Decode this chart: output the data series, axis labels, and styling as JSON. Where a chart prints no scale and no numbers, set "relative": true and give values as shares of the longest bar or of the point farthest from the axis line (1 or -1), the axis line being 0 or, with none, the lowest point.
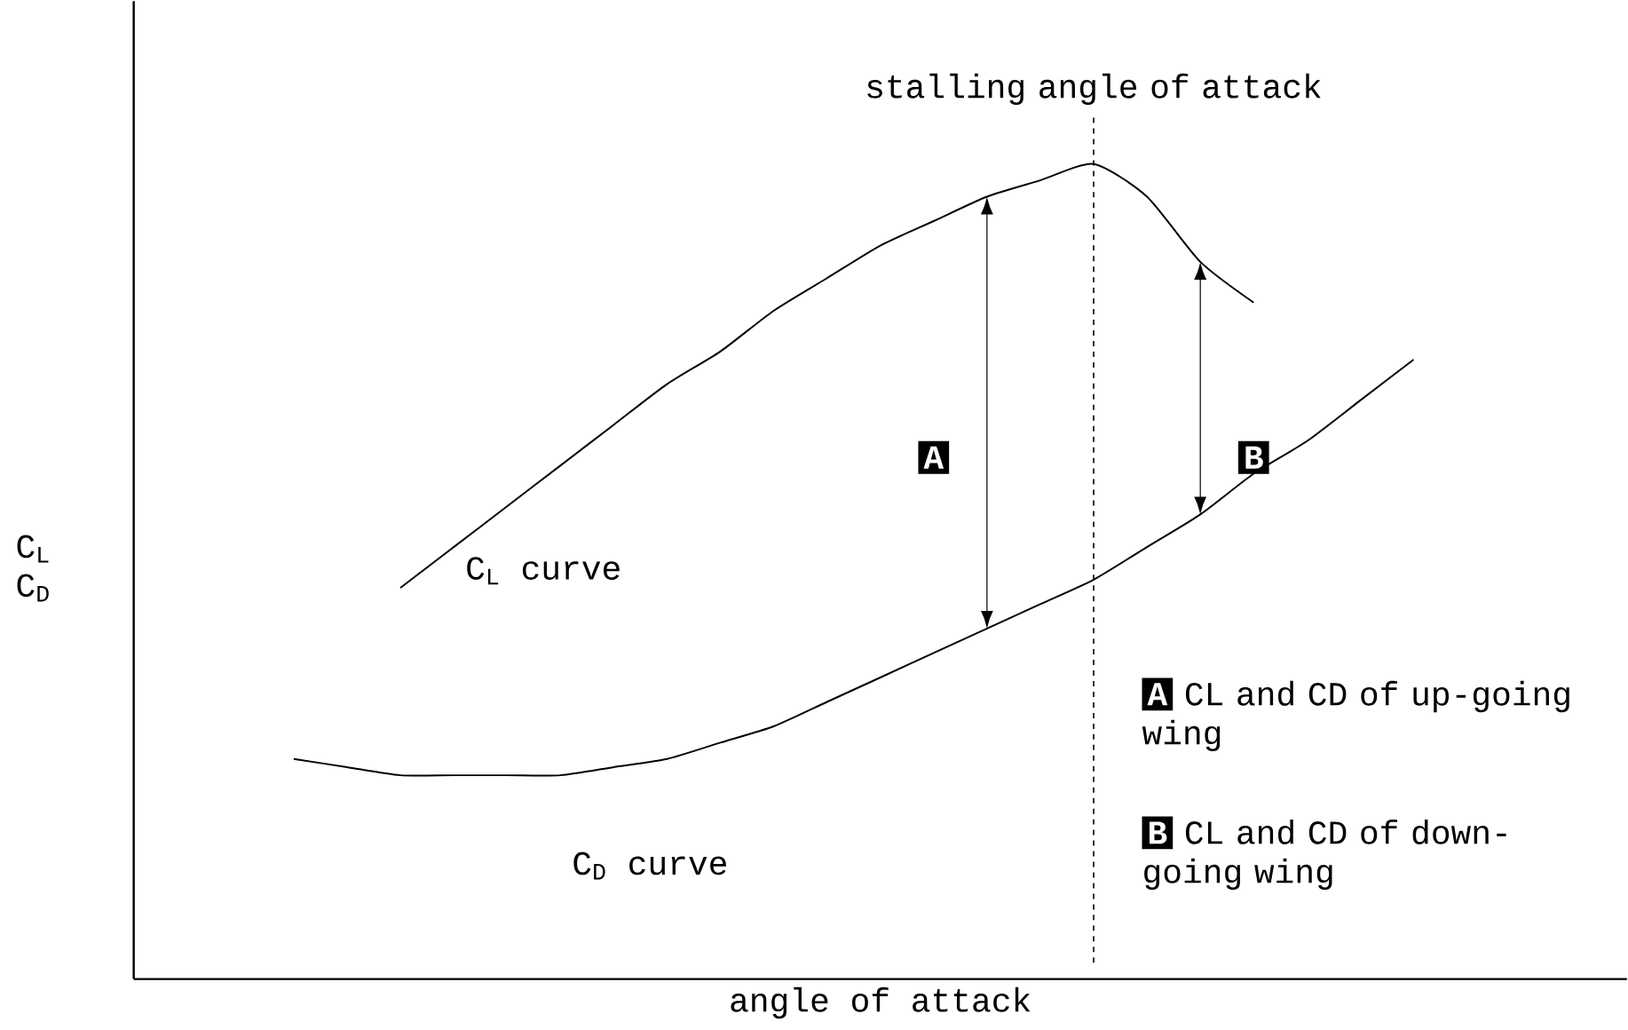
{
  "chart_data": {
    "type": "line",
    "relative": true,
    "xlabel": "angle of attack",
    "ylabel": "C$_{L}$ C$_{D}$",
    "categories": [
      null,
      null,
      null,
      null,
      null,
      null,
      null,
      null,
      null,
      null,
      null,
      null,
      null,
      null,
      null,
      null,
      null,
      null,
      null,
      null,
      null,
      null,
      null,
      null,
      null,
      null,
      null,
      null,
      null
    ],
    "series": [
      {
        "name": "C$_{L}$ curve",
        "color": "#000000",
        "values": [
          null,
          null,
          null,
          null,
          null,
          0.48,
          0.53,
          0.58,
          0.63,
          0.68,
          0.73,
          0.77,
          0.82,
          0.86,
          0.9,
          0.93,
          0.96,
          0.98,
          1,
          0.96,
          0.88,
          0.83,
          null,
          null,
          null,
          null,
          null,
          null,
          null
        ]
      },
      {
        "name": "C$_{D}$ curve",
        "color": "#000000",
        "values": [
          null,
          null,
          null,
          0.27,
          0.26,
          0.25,
          0.25,
          0.25,
          0.25,
          0.26,
          0.27,
          0.29,
          0.31,
          0.34,
          0.37,
          0.4,
          0.43,
          0.46,
          0.49,
          0.53,
          0.57,
          0.62,
          0.66,
          0.71,
          0.76,
          null,
          null,
          null,
          null
        ]
      }
    ],
    "annotations": [
      "A",
      "B",
      "CL and CD of up-going wing",
      "CL and CD of down-going wing",
      "stalling angle of attack"
    ]
  }
}
